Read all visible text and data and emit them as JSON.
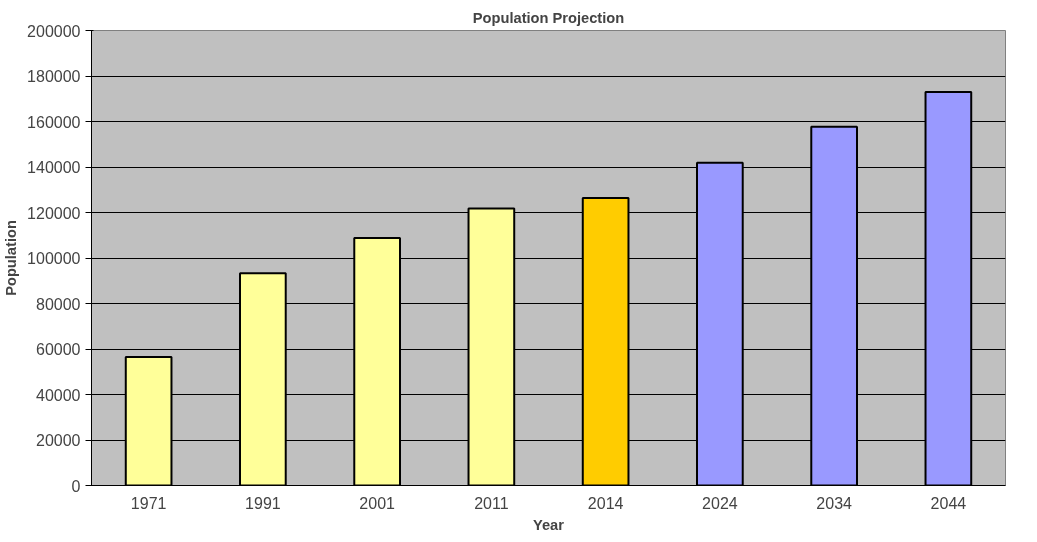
{
  "chart_data": {
    "type": "bar",
    "title": "Population Projection",
    "xlabel": "Year",
    "ylabel": "Population",
    "categories": [
      "1971",
      "1991",
      "2001",
      "2011",
      "2014",
      "2024",
      "2034",
      "2044"
    ],
    "values": [
      56500,
      93300,
      108800,
      121800,
      126400,
      141900,
      157700,
      173000
    ],
    "colors": [
      "#ffff99",
      "#ffff99",
      "#ffff99",
      "#ffff99",
      "#ffcc00",
      "#9999ff",
      "#9999ff",
      "#9999ff"
    ],
    "ylim": [
      0,
      200000
    ],
    "yticks": [
      0,
      20000,
      40000,
      60000,
      80000,
      100000,
      120000,
      140000,
      160000,
      180000,
      200000
    ],
    "grid": "y"
  }
}
